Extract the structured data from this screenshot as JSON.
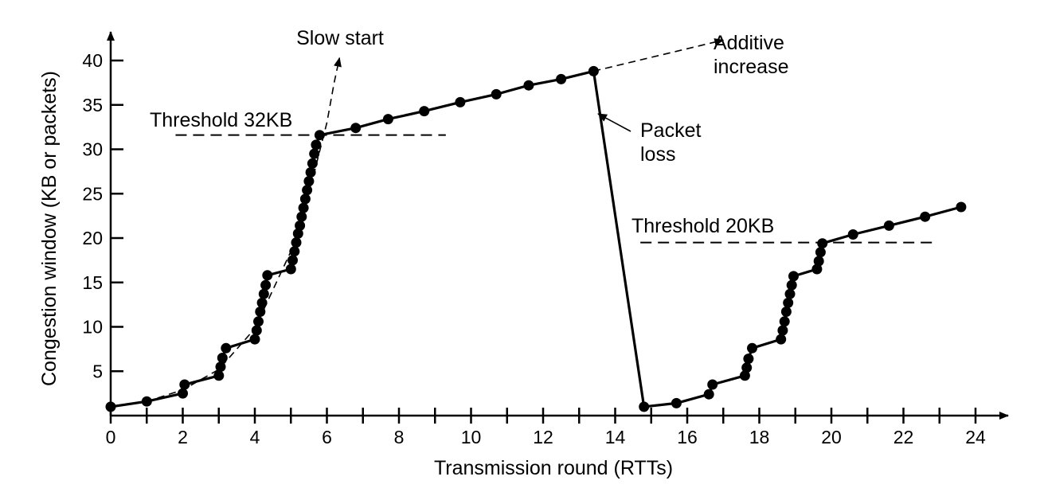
{
  "chart_data": {
    "type": "line",
    "xlabel": "Transmission round (RTTs)",
    "ylabel": "Congestion window (KB or packets)",
    "xlim": [
      0,
      25
    ],
    "ylim": [
      0,
      42
    ],
    "x_ticks": [
      0,
      2,
      4,
      6,
      8,
      10,
      12,
      14,
      16,
      18,
      20,
      22,
      24
    ],
    "x_minor_ticks": [
      1,
      3,
      5,
      7,
      9,
      11,
      13,
      15,
      17,
      19,
      21,
      23
    ],
    "y_ticks": [
      5,
      10,
      15,
      20,
      25,
      30,
      35,
      40
    ],
    "grid": false,
    "series": [
      {
        "points": [
          [
            0,
            1
          ],
          [
            1.0,
            1.6
          ],
          [
            2.0,
            2.5
          ],
          [
            2.05,
            3.5
          ],
          [
            3.0,
            4.5
          ],
          [
            3.05,
            5.5
          ],
          [
            3.1,
            6.5
          ],
          [
            3.2,
            7.6
          ],
          [
            4.0,
            8.6
          ],
          [
            4.05,
            9.6
          ],
          [
            4.1,
            10.6
          ],
          [
            4.15,
            11.7
          ],
          [
            4.2,
            12.7
          ],
          [
            4.25,
            13.7
          ],
          [
            4.3,
            14.7
          ],
          [
            4.35,
            15.8
          ],
          [
            5.0,
            16.5
          ],
          [
            5.05,
            17.5
          ],
          [
            5.1,
            18.5
          ],
          [
            5.15,
            19.5
          ],
          [
            5.2,
            20.5
          ],
          [
            5.25,
            21.4
          ],
          [
            5.3,
            22.4
          ],
          [
            5.35,
            23.4
          ],
          [
            5.4,
            24.4
          ],
          [
            5.45,
            25.4
          ],
          [
            5.5,
            26.4
          ],
          [
            5.55,
            27.4
          ],
          [
            5.6,
            28.4
          ],
          [
            5.65,
            29.5
          ],
          [
            5.7,
            30.5
          ],
          [
            5.8,
            31.6
          ],
          [
            6.8,
            32.4
          ],
          [
            7.7,
            33.4
          ],
          [
            8.7,
            34.3
          ],
          [
            9.7,
            35.3
          ],
          [
            10.7,
            36.2
          ],
          [
            11.6,
            37.2
          ],
          [
            12.5,
            37.9
          ],
          [
            13.4,
            38.8
          ],
          [
            14.8,
            1.0
          ],
          [
            15.7,
            1.4
          ],
          [
            16.6,
            2.4
          ],
          [
            16.7,
            3.5
          ],
          [
            17.6,
            4.5
          ],
          [
            17.65,
            5.4
          ],
          [
            17.7,
            6.4
          ],
          [
            17.8,
            7.6
          ],
          [
            18.6,
            8.6
          ],
          [
            18.65,
            9.6
          ],
          [
            18.7,
            10.6
          ],
          [
            18.75,
            11.7
          ],
          [
            18.8,
            12.7
          ],
          [
            18.85,
            13.7
          ],
          [
            18.9,
            14.7
          ],
          [
            18.95,
            15.7
          ],
          [
            19.6,
            16.5
          ],
          [
            19.65,
            17.4
          ],
          [
            19.7,
            18.4
          ],
          [
            19.75,
            19.4
          ],
          [
            20.6,
            20.4
          ],
          [
            21.6,
            21.4
          ],
          [
            22.6,
            22.4
          ],
          [
            23.6,
            23.5
          ]
        ]
      }
    ],
    "slow_start_curve": [
      [
        0,
        1
      ],
      [
        1,
        1.6
      ],
      [
        2,
        2.9
      ],
      [
        3,
        5.2
      ],
      [
        4,
        9.8
      ],
      [
        5,
        18.5
      ],
      [
        5.6,
        26.6
      ],
      [
        6.0,
        33
      ],
      [
        6.2,
        37.5
      ],
      [
        6.35,
        40.3
      ]
    ],
    "additive_increase_extension": [
      [
        13.4,
        38.8
      ],
      [
        17.0,
        42.3
      ]
    ],
    "thresholds": [
      {
        "label": "Threshold 32KB",
        "y": 31.6,
        "x_start": 1.8,
        "x_end": 9.3
      },
      {
        "label": "Threshold 20KB",
        "y": 19.5,
        "x_start": 14.7,
        "x_end": 22.8
      }
    ],
    "annotations": {
      "slow_start": "Slow start",
      "additive_increase_line1": "Additive",
      "additive_increase_line2": "increase",
      "packet_loss_line1": "Packet",
      "packet_loss_line2": "loss"
    }
  }
}
